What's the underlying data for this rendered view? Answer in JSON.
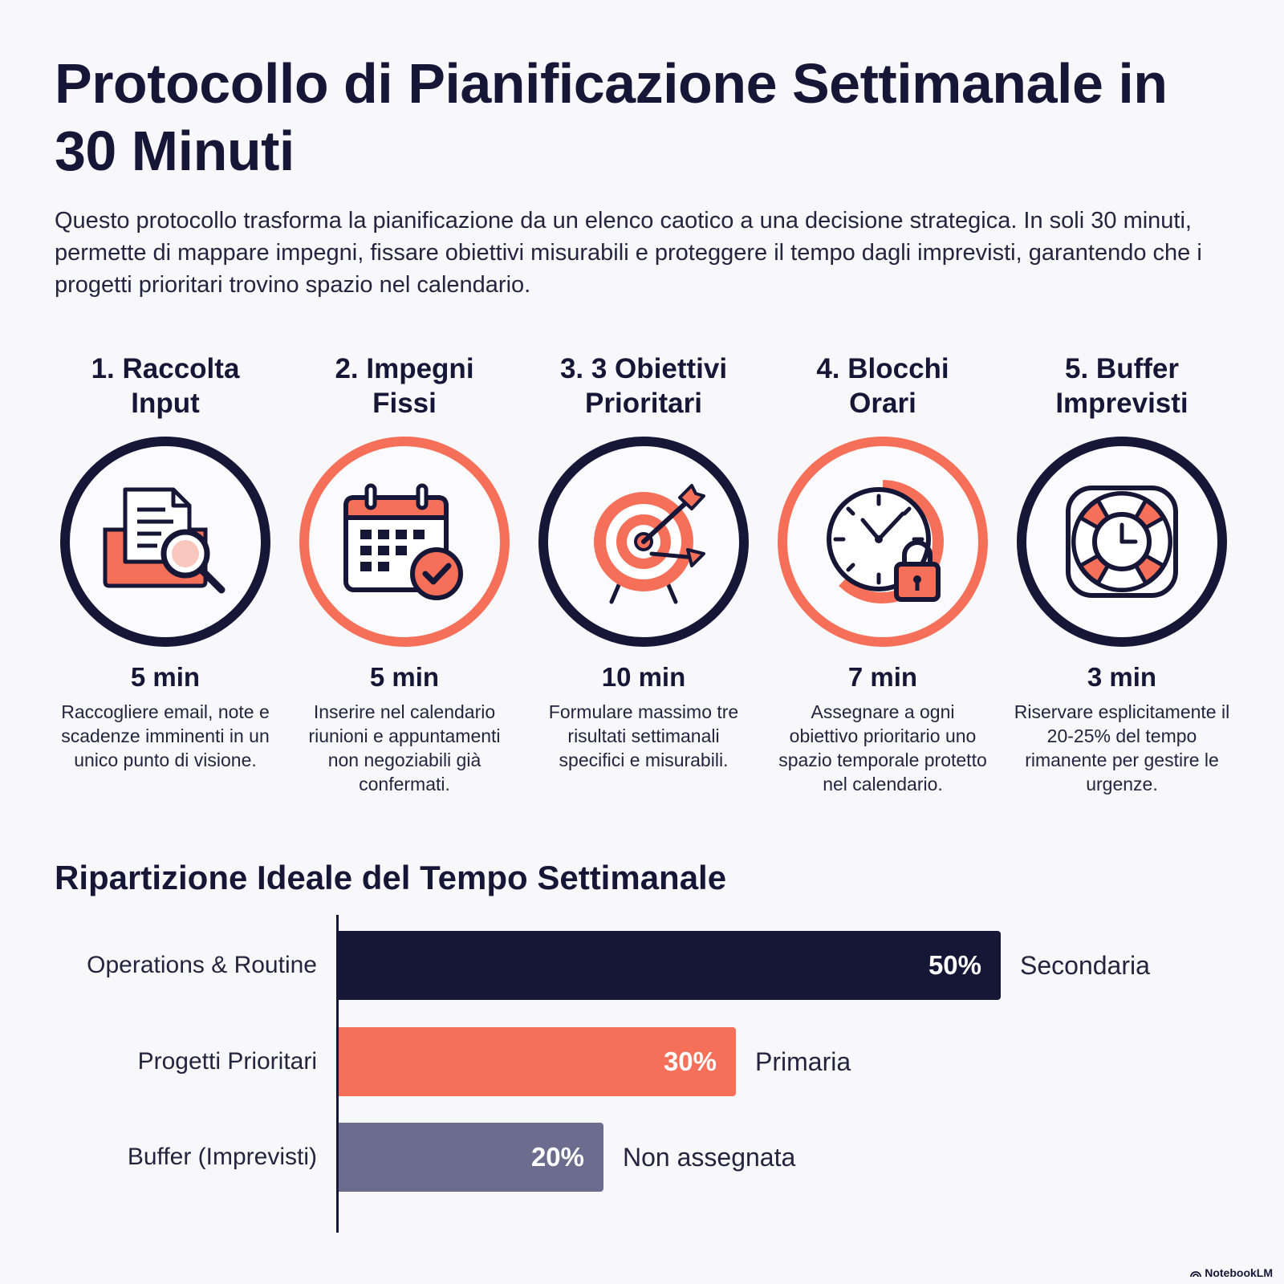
{
  "title": "Protocollo di Pianificazione Settimanale in 30 Minuti",
  "intro": "Questo protocollo trasforma la pianificazione da un elenco caotico a una decisione strategica. In soli 30 minuti, permette di mappare impegni, fissare obiettivi misurabili e proteggere il tempo dagli imprevisti, garantendo che i progetti prioritari trovino spazio nel calendario.",
  "steps": [
    {
      "title": "1. Raccolta\nInput",
      "duration": "5 min",
      "description": "Raccogliere email, note e scadenze imminenti in un unico punto di visione.",
      "icon": "folder-search-icon",
      "ring": "dark"
    },
    {
      "title": "2. Impegni\nFissi",
      "duration": "5 min",
      "description": "Inserire nel calendario riunioni e appuntamenti non negoziabili già confermati.",
      "icon": "calendar-check-icon",
      "ring": "accent"
    },
    {
      "title": "3. 3 Obiettivi\nPrioritari",
      "duration": "10 min",
      "description": "Formulare massimo tre risultati settimanali specifici e misurabili.",
      "icon": "target-icon",
      "ring": "dark"
    },
    {
      "title": "4. Blocchi\nOrari",
      "duration": "7 min",
      "description": "Assegnare a ogni obiettivo prioritario uno spazio temporale protetto nel calendario.",
      "icon": "clock-lock-icon",
      "ring": "accent"
    },
    {
      "title": "5. Buffer\nImprevisti",
      "duration": "3 min",
      "description": "Riservare esplicitamente il 20-25% del tempo rimanente per gestire le urgenze.",
      "icon": "lifebuoy-clock-icon",
      "ring": "dark"
    }
  ],
  "chart_data": {
    "type": "bar",
    "orientation": "horizontal",
    "title": "Ripartizione Ideale del Tempo Settimanale",
    "categories": [
      "Operations & Routine",
      "Progetti Prioritari",
      "Buffer (Imprevisti)"
    ],
    "values": [
      50,
      30,
      20
    ],
    "value_labels": [
      "50%",
      "30%",
      "20%"
    ],
    "notes": [
      "Secondaria",
      "Primaria",
      "Non assegnata"
    ],
    "colors": [
      "#161637",
      "#f56f59",
      "#6c6c8e"
    ],
    "xlim": [
      0,
      60
    ],
    "grid": false
  },
  "brand": "NotebookLM",
  "colors": {
    "dark": "#161637",
    "accent": "#f56f59",
    "muted": "#6c6c8e",
    "background": "#f8f8fb"
  }
}
